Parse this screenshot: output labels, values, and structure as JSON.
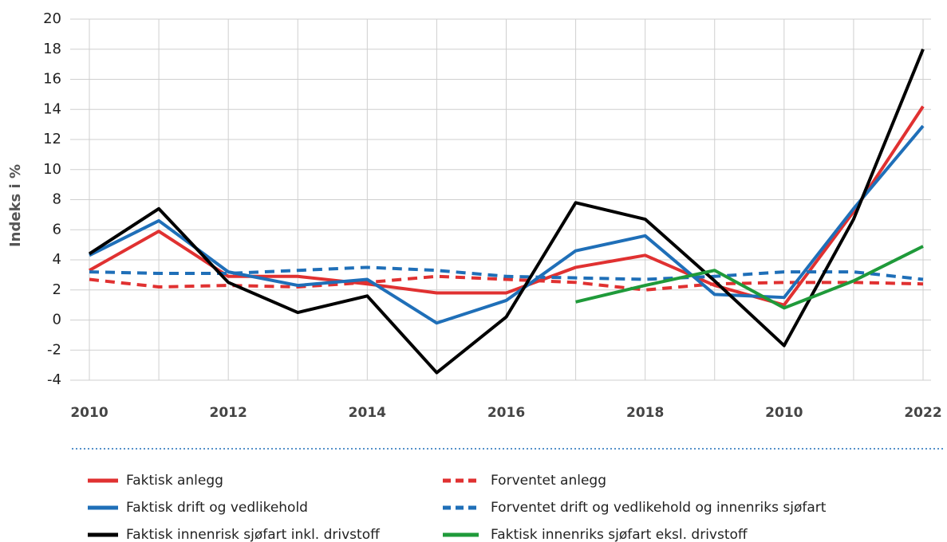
{
  "chart_data": {
    "type": "line",
    "ylabel": "Indeks i %",
    "categories": [
      "2010",
      null,
      "2012",
      null,
      "2014",
      null,
      "2016",
      null,
      "2018",
      null,
      "2010",
      null,
      "2022"
    ],
    "ylim": [
      -4,
      20
    ],
    "yticks": [
      -4,
      -2,
      0,
      2,
      4,
      6,
      8,
      10,
      12,
      14,
      16,
      18,
      20
    ],
    "grid": true,
    "series": [
      {
        "name": "Faktisk anlegg",
        "color": "#e03131",
        "linestyle": "solid",
        "values": [
          3.3,
          5.9,
          2.9,
          2.9,
          2.4,
          1.8,
          1.8,
          3.5,
          4.3,
          2.3,
          1.0,
          7.2,
          14.2
        ]
      },
      {
        "name": "Forventet anlegg",
        "color": "#e03131",
        "linestyle": "dashed",
        "values": [
          2.7,
          2.2,
          2.3,
          2.2,
          2.5,
          2.9,
          2.7,
          2.5,
          2.0,
          2.4,
          2.5,
          2.5,
          2.4
        ]
      },
      {
        "name": "Faktisk drift og vedlikehold",
        "color": "#1f6fb8",
        "linestyle": "solid",
        "values": [
          4.3,
          6.6,
          3.2,
          2.3,
          2.7,
          -0.2,
          1.3,
          4.6,
          5.6,
          1.7,
          1.5,
          7.4,
          12.9
        ]
      },
      {
        "name": "Forventet drift og vedlikehold og innenriks sjøfart",
        "color": "#1f6fb8",
        "linestyle": "dashed",
        "values": [
          3.2,
          3.1,
          3.1,
          3.3,
          3.5,
          3.3,
          2.9,
          2.8,
          2.7,
          2.9,
          3.2,
          3.2,
          2.7
        ]
      },
      {
        "name": "Faktisk innenrisk sjøfart inkl. drivstoff",
        "color": "#000000",
        "linestyle": "solid",
        "values": [
          4.4,
          7.4,
          2.5,
          0.5,
          1.6,
          -3.5,
          0.2,
          7.8,
          6.7,
          2.6,
          -1.7,
          6.7,
          18.0
        ]
      },
      {
        "name": "Faktisk innenriks sjøfart eksl. drivstoff",
        "color": "#1f9a3a",
        "linestyle": "solid",
        "values": [
          null,
          null,
          null,
          null,
          null,
          null,
          null,
          1.2,
          2.3,
          3.3,
          0.8,
          2.6,
          4.9
        ]
      }
    ]
  }
}
